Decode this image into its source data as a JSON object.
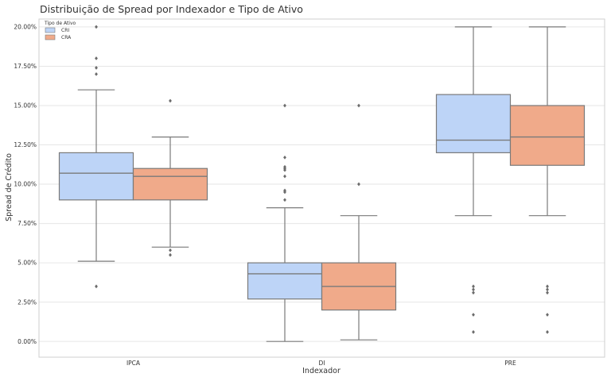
{
  "chart_data": {
    "type": "box",
    "title": "Distribuição de Spread por Indexador e Tipo de Ativo",
    "xlabel": "Indexador",
    "ylabel": "Spread de Crédito",
    "ylim": [
      -0.01,
      0.205
    ],
    "yticks": [
      "0.00%",
      "2.50%",
      "5.00%",
      "7.50%",
      "10.00%",
      "12.50%",
      "15.00%",
      "17.50%",
      "20.00%"
    ],
    "ytick_values": [
      0,
      0.025,
      0.05,
      0.075,
      0.1,
      0.125,
      0.15,
      0.175,
      0.2
    ],
    "grid": true,
    "legend": {
      "title": "Tipo de Ativo",
      "placement": "top-left"
    },
    "categories": [
      "IPCA",
      "DI",
      "PRE"
    ],
    "series": [
      {
        "name": "CRI",
        "color": "#bdd4f7",
        "boxes": [
          {
            "whislo": 0.051,
            "q1": 0.09,
            "med": 0.107,
            "q3": 0.12,
            "whishi": 0.16,
            "fliers": [
              0.035,
              0.17,
              0.174,
              0.18,
              0.2
            ]
          },
          {
            "whislo": 0.0,
            "q1": 0.027,
            "med": 0.043,
            "q3": 0.05,
            "whishi": 0.085,
            "fliers": [
              0.09,
              0.095,
              0.096,
              0.105,
              0.109,
              0.11,
              0.111,
              0.117,
              0.15
            ]
          },
          {
            "whislo": 0.08,
            "q1": 0.12,
            "med": 0.128,
            "q3": 0.157,
            "whishi": 0.2,
            "fliers": [
              0.006,
              0.017,
              0.031,
              0.033,
              0.035
            ]
          }
        ]
      },
      {
        "name": "CRA",
        "color": "#f0aa8a",
        "boxes": [
          {
            "whislo": 0.06,
            "q1": 0.09,
            "med": 0.105,
            "q3": 0.11,
            "whishi": 0.13,
            "fliers": [
              0.055,
              0.058,
              0.153
            ]
          },
          {
            "whislo": 0.001,
            "q1": 0.02,
            "med": 0.035,
            "q3": 0.05,
            "whishi": 0.08,
            "fliers": [
              0.1,
              0.15
            ]
          },
          {
            "whislo": 0.08,
            "q1": 0.112,
            "med": 0.13,
            "q3": 0.15,
            "whishi": 0.2,
            "fliers": [
              0.006,
              0.017,
              0.031,
              0.033,
              0.035
            ]
          }
        ]
      }
    ],
    "colors": {
      "grid": "#e6e6e6",
      "box_stroke": "#7a7a7a",
      "frame": "#cfcfcf",
      "flier": "#6b6b6b"
    }
  }
}
